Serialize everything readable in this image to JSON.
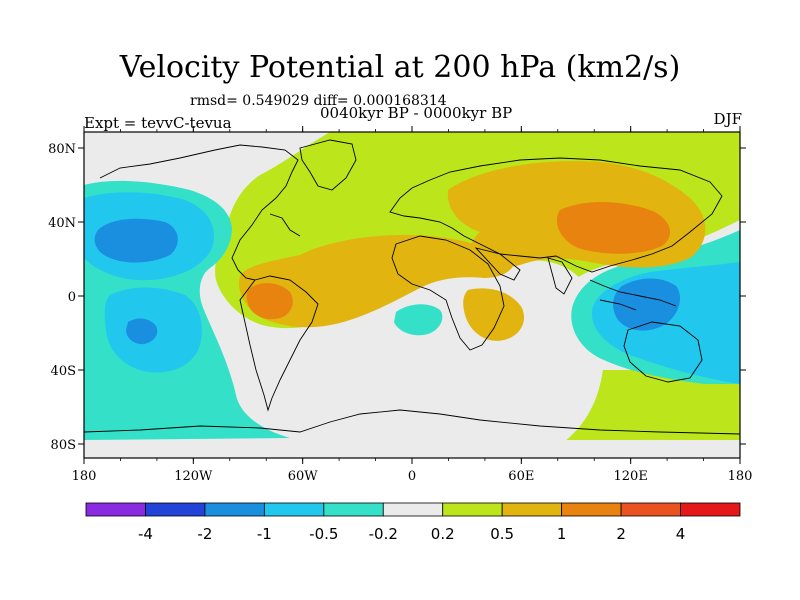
{
  "title": "Velocity Potential at 200 hPa (km2/s)",
  "stats": "rmsd= 0.549029  diff= 0.000168314",
  "experiment": "Expt = tevvC-tevua",
  "period": "0040kyr BP - 0000kyr BP",
  "season": "DJF",
  "lon_ticks": [
    "180",
    "120W",
    "60W",
    "0",
    "60E",
    "120E",
    "180"
  ],
  "lat_ticks": [
    "80N",
    "40N",
    "0",
    "40S",
    "80S"
  ],
  "colorbar": {
    "colors": [
      "#8a2be2",
      "#2343d8",
      "#1a8fe0",
      "#22c7ee",
      "#35e0c8",
      "#ebebeb",
      "#bde51b",
      "#e2b40f",
      "#e9830f",
      "#ea5222",
      "#e41818"
    ],
    "labels": [
      "-4",
      "-2",
      "-1",
      "-0.5",
      "-0.2",
      "0.2",
      "0.5",
      "1",
      "2",
      "4"
    ]
  }
}
